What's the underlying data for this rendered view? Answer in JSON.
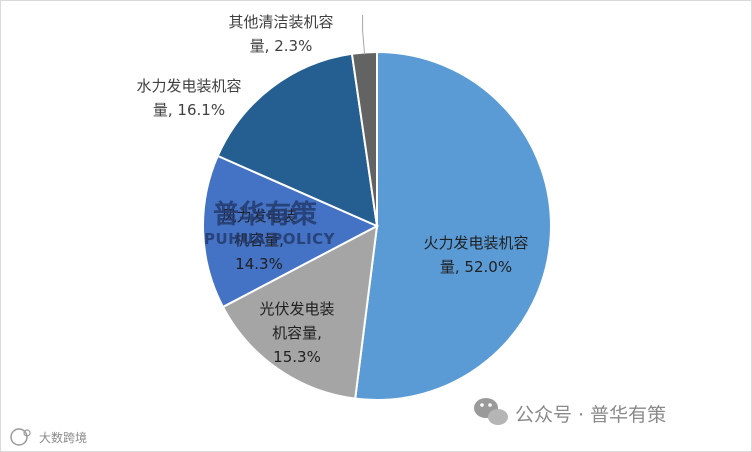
{
  "chart_data": {
    "type": "pie",
    "title": "",
    "slices": [
      {
        "label": [
          "火力发电装机容",
          "量, 52.0%"
        ],
        "value": 52.0,
        "color": "#5b9bd5"
      },
      {
        "label": [
          "光伏发电装",
          "机容量,",
          "15.3%"
        ],
        "value": 15.3,
        "color": "#a5a5a5"
      },
      {
        "label": [
          "风力发电装",
          "机容量,",
          "14.3%"
        ],
        "value": 14.3,
        "color": "#4472c4"
      },
      {
        "label": [
          "水力发电装机容",
          "量, 16.1%"
        ],
        "value": 16.1,
        "color": "#255e91"
      },
      {
        "label": [
          "其他清洁装机容",
          "量, 2.3%"
        ],
        "value": 2.3,
        "color": "#636363"
      }
    ]
  },
  "watermark": {
    "cn": "普华有策",
    "en": "PUHUA POLICY"
  },
  "footer": {
    "account": "公众号 · 普华有策",
    "corner_mark": "大数跨境"
  }
}
